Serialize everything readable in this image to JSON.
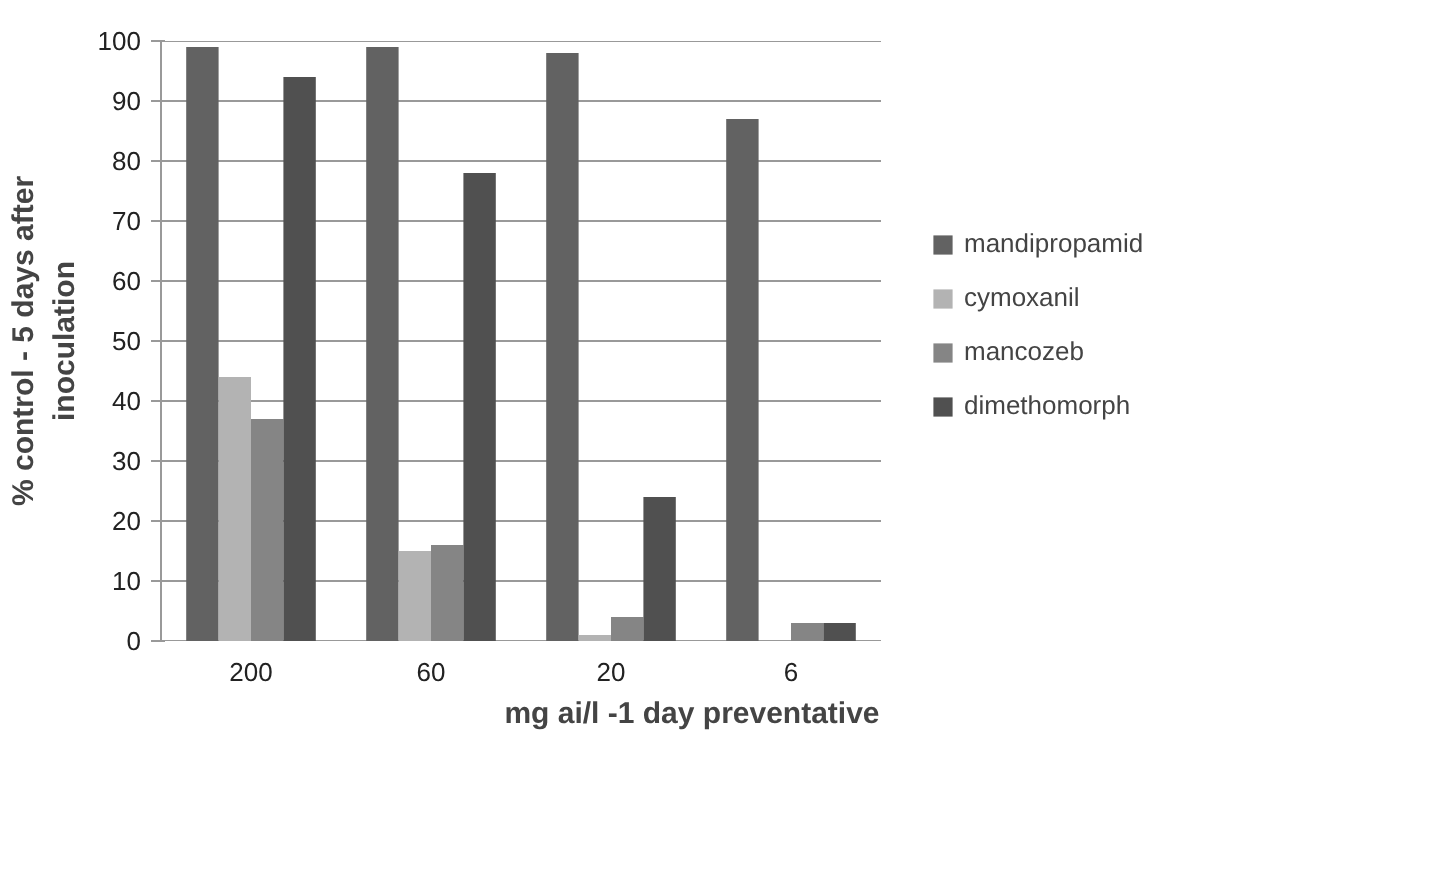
{
  "chart_data": {
    "type": "bar",
    "xlabel": "mg ai/l -1 day preventative",
    "ylabel": "% control - 5 days after inoculation",
    "categories": [
      "200",
      "60",
      "20",
      "6"
    ],
    "series": [
      {
        "name": "mandipropamid",
        "color": "#626262",
        "values": [
          99,
          99,
          98,
          87
        ]
      },
      {
        "name": "cymoxanil",
        "color": "#b3b3b3",
        "values": [
          44,
          15,
          1,
          0
        ]
      },
      {
        "name": "mancozeb",
        "color": "#858585",
        "values": [
          37,
          16,
          4,
          3
        ]
      },
      {
        "name": "dimethomorph",
        "color": "#505050",
        "values": [
          94,
          78,
          24,
          3
        ]
      }
    ],
    "ylim": [
      0,
      100
    ],
    "yticks": [
      0,
      10,
      20,
      30,
      40,
      50,
      60,
      70,
      80,
      90,
      100
    ],
    "grid": "y",
    "legend": "right"
  }
}
